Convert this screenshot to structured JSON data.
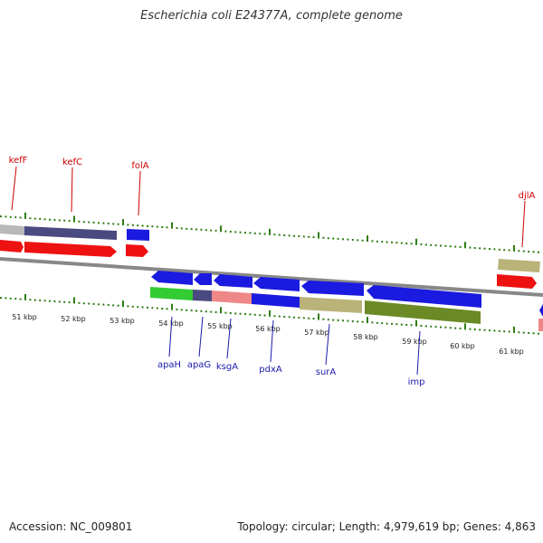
{
  "title": "Escherichia coli E24377A, complete genome",
  "footer": {
    "accession": "Accession: NC_009801",
    "summary": "Topology: circular; Length: 4,979,619 bp; Genes: 4,863"
  },
  "colors": {
    "tick_green": "#2e7d12",
    "backbone": "#888888",
    "label_red": "#cc0000",
    "label_blue": "#1a1aaa",
    "feature_blue": "#1a1ae0",
    "feature_red": "#ee1111",
    "feature_navy": "#4a4a80",
    "feature_grey": "#b8b8b8",
    "feature_tan": "#b9b37a",
    "feature_olive": "#6b8a25",
    "feature_pink": "#ee8888",
    "feature_green": "#33cc33"
  },
  "kbp_labels": [
    "51 kbp",
    "52 kbp",
    "53 kbp",
    "54 kbp",
    "55 kbp",
    "56 kbp",
    "57 kbp",
    "58 kbp",
    "59 kbp",
    "60 kbp",
    "61 kbp"
  ],
  "outer_genes": [
    "kefF",
    "kefC",
    "folA",
    "djlA"
  ],
  "inner_genes": [
    "apaH",
    "apaG",
    "ksgA",
    "pdxA",
    "surA",
    "imp"
  ]
}
